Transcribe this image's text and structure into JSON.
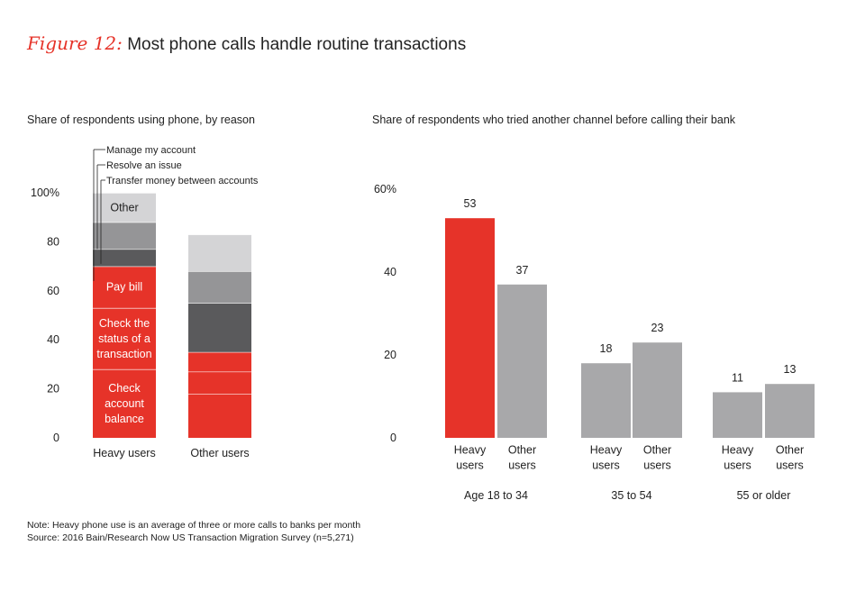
{
  "title": {
    "figure_label": "Figure 12:",
    "text": "Most phone calls handle routine transactions"
  },
  "colors": {
    "red": "#e63329",
    "gray": "#a8a8aa",
    "light_gray": "#d4d4d6",
    "mid_gray": "#959597",
    "dark_gray": "#5a5a5c"
  },
  "chart_data": [
    {
      "type": "bar",
      "stacked": true,
      "title": "Share of respondents using phone, by reason",
      "categories": [
        "Heavy users",
        "Other users"
      ],
      "y_tick_labels": [
        "0",
        "20",
        "40",
        "60",
        "80",
        "100%"
      ],
      "ylim": [
        0,
        100
      ],
      "series": [
        {
          "name": "Check account balance",
          "label": "Check\naccount\nbalance",
          "values": [
            28,
            18
          ],
          "color": "#e63329"
        },
        {
          "name": "Check the status of a transaction",
          "label": "Check the\nstatus of a\ntransaction",
          "values": [
            25,
            9
          ],
          "color": "#e63329"
        },
        {
          "name": "Pay bill",
          "label": "Pay bill",
          "values": [
            17,
            8
          ],
          "color": "#e63329"
        },
        {
          "name": "Transfer money between accounts",
          "label": "",
          "values": [
            7,
            20
          ],
          "color": "#5a5a5c"
        },
        {
          "name": "Resolve an issue",
          "label": "",
          "values": [
            0,
            0
          ],
          "color": "#ffffff"
        },
        {
          "name": "Manage my account",
          "label": "",
          "values": [
            11,
            13
          ],
          "color": "#959597"
        },
        {
          "name": "Other",
          "label": "Other",
          "values": [
            12,
            15
          ],
          "color": "#d4d4d6"
        }
      ],
      "annotations": [
        "Manage my account",
        "Resolve an issue",
        "Transfer money between accounts"
      ]
    },
    {
      "type": "bar",
      "title": "Share of respondents who tried another channel before calling their bank",
      "groups": [
        "Age 18 to 34",
        "35 to 54",
        "55 or older"
      ],
      "bar_labels": [
        "Heavy\nusers",
        "Other\nusers"
      ],
      "series": [
        {
          "name": "Heavy users",
          "values": [
            53,
            18,
            11
          ]
        },
        {
          "name": "Other users",
          "values": [
            37,
            23,
            13
          ]
        }
      ],
      "highlight": {
        "group": 0,
        "series": 0
      },
      "y_tick_labels": [
        "0",
        "20",
        "40",
        "60%"
      ],
      "ylim": [
        0,
        60
      ]
    }
  ],
  "note": "Note: Heavy phone use is an average of three or more calls to banks per month",
  "source": "Source: 2016 Bain/Research Now US Transaction Migration Survey (n=5,271)"
}
